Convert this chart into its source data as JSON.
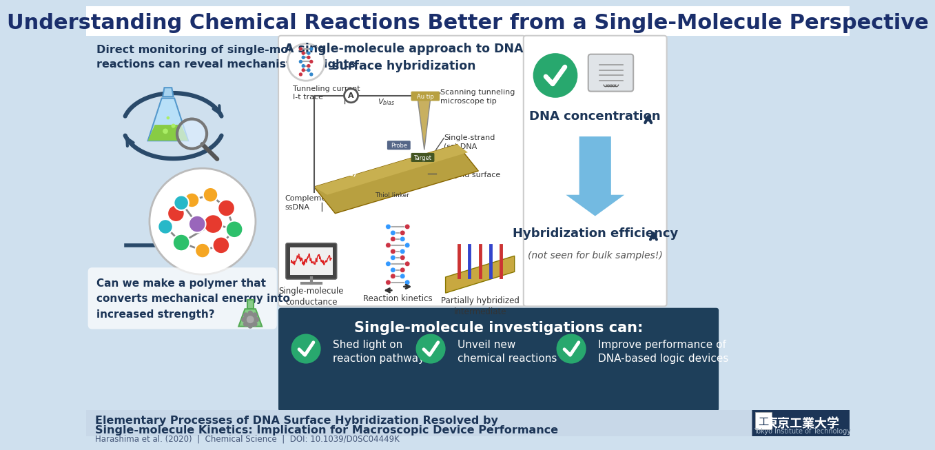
{
  "title": "Understanding Chemical Reactions Better from a Single-Molecule Perspective",
  "title_color": "#1a2e6b",
  "bg_color": "#cfe0ee",
  "left_text1": "Direct monitoring of single-molecule\nreactions can reveal mechanistic insights",
  "left_text2": "Can we make a polymer that\nconverts mechanical energy into\nincreased strength?",
  "center_title": "A single-molecule approach to DNA\nsurface hybridization",
  "label_tunneling": "Tunneling current\nI-t trace",
  "label_scanning": "Scanning tunneling\nmicroscope tip",
  "label_ss_dna": "Single-strand\n(ss) DNA",
  "label_flat_gold": "Flat gold surface",
  "label_comp_ssdna": "Complementary\nssDNA",
  "label_probe": "Probe",
  "label_target": "Target",
  "label_thiol": "Thiol linker",
  "label_au111": "Au(111)",
  "label_vbias": "V",
  "bottom_label1": "Single-molecule\nconductance",
  "bottom_label2": "Reaction kinetics",
  "bottom_label3": "Partially hybridized\nintermediate",
  "right_text1": "DNA concentration",
  "right_text2": "Hybridization efficiency",
  "right_subtext": "(not seen for bulk samples!)",
  "bottom_title": "Single-molecule investigations can:",
  "item1": "Shed light on\nreaction pathways",
  "item2": "Unveil new\nchemical reactions",
  "item3": "Improve performance of\nDNA-based logic devices",
  "footer_line1": "Elementary Processes of DNA Surface Hybridization Resolved by",
  "footer_line2": "Single-molecule Kinetics: Implication for Macroscopic Device Performance",
  "footer_citation": "Harashima et al. (2020)  |  Chemical Science  |  DOI: 10.1039/D0SC04449K",
  "white": "#ffffff",
  "dark_blue": "#1c3557",
  "mid_blue": "#2a5080",
  "panel_bg": "#ffffff",
  "dark_panel": "#1e3f5a",
  "footer_bg": "#c8d8e8",
  "green_check": "#28a86e",
  "arrow_up_color": "#1c3557",
  "arrow_down_color": "#4eaadd",
  "logo_bg": "#1c3557",
  "circle_arrow_color": "#2a4a6a"
}
